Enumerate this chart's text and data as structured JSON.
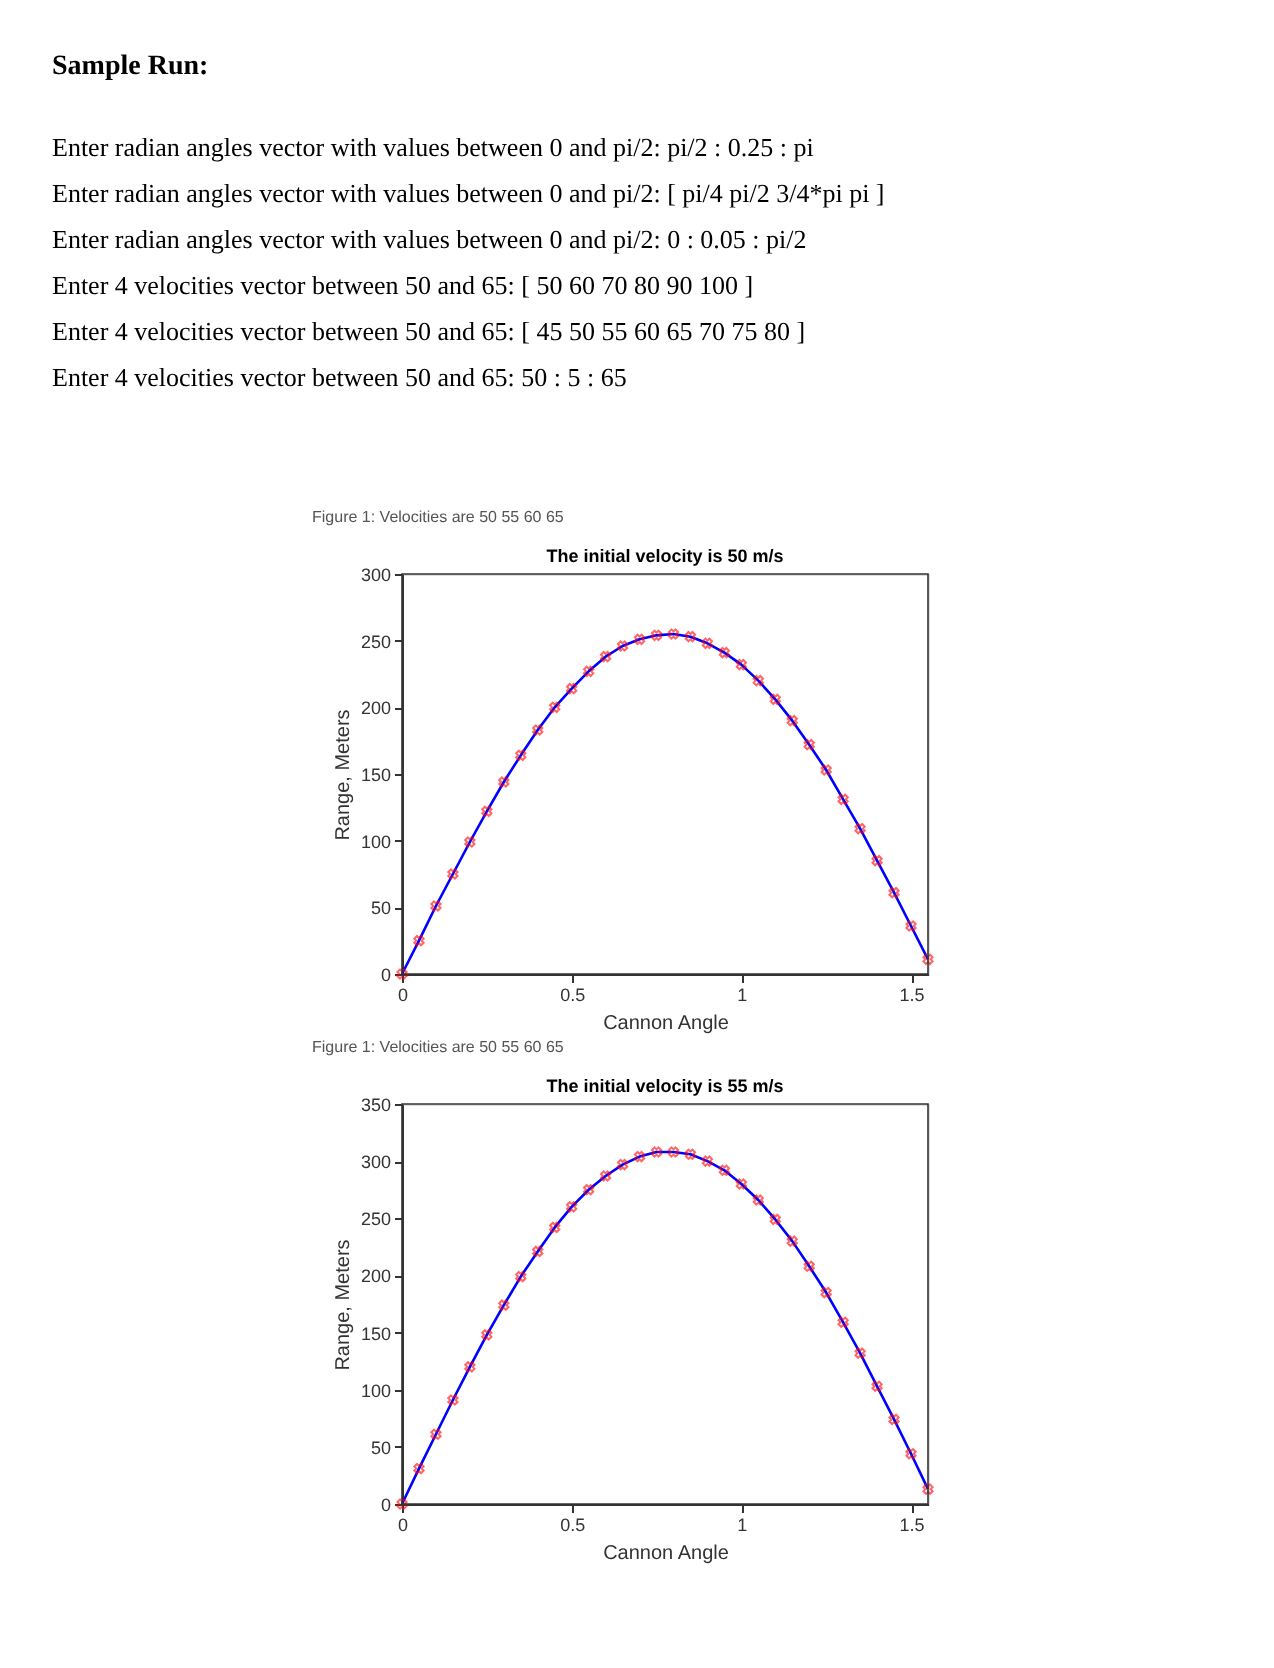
{
  "chart_data": [
    {
      "type": "line",
      "title": "The initial velocity is 50 m/s",
      "annotations": [
        "Sample Run:",
        "Enter radian angles vector with values between 0 and pi/2: pi/2 : 0.25 : pi",
        "Enter radian angles vector with values between 0 and pi/2: [ pi/4  pi/2  3/4*pi  pi  ]",
        "Enter radian angles vector with values between 0 and pi/2: 0 : 0.05 : pi/2",
        "Enter 4 velocities vector between 50 and 65: [ 50 60 70 80 90 100 ]",
        "Enter 4 velocities vector between 50 and 65: [ 45 50 55 60 65 70 75 80 ]",
        "Enter 4 velocities vector between 50 and 65: 50 : 5 : 65",
        "Figure 1: Velocities are 50 55 60 65"
      ],
      "xlabel": "Cannon Angle",
      "ylabel": "Range, Meters",
      "x": [
        0,
        0.05,
        0.1,
        0.15,
        0.2,
        0.25,
        0.3,
        0.35,
        0.4,
        0.45,
        0.5,
        0.55,
        0.6,
        0.65,
        0.7,
        0.75,
        0.8,
        0.85,
        0.9,
        0.95,
        1.0,
        1.05,
        1.1,
        1.15,
        1.2,
        1.25,
        1.3,
        1.35,
        1.4,
        1.45,
        1.5,
        1.55
      ],
      "series": [
        {
          "type": "line",
          "color": "#0000ff",
          "marker": "none",
          "values": [
            0,
            25,
            51,
            75,
            99,
            122,
            144,
            164,
            183,
            200,
            214,
            227,
            238,
            246,
            251,
            254,
            255,
            253,
            248,
            241,
            232,
            220,
            206,
            190,
            172,
            153,
            131,
            109,
            85,
            61,
            36,
            11
          ]
        },
        {
          "type": "scatter",
          "color": "#ff0000",
          "marker": "cross",
          "values": [
            0,
            25,
            51,
            75,
            99,
            122,
            144,
            164,
            183,
            200,
            214,
            227,
            238,
            246,
            251,
            254,
            255,
            253,
            248,
            241,
            232,
            220,
            206,
            190,
            172,
            153,
            131,
            109,
            85,
            61,
            36,
            11
          ]
        }
      ],
      "xlim": [
        0,
        1.55
      ],
      "xticks": [
        0,
        0.5,
        1,
        1.5
      ],
      "ylim": [
        0,
        300
      ],
      "yticks": [
        0,
        50,
        100,
        150,
        200,
        250,
        300
      ]
    },
    {
      "type": "line",
      "title": "The initial velocity is 55 m/s",
      "annotations": [
        "Figure 1: Velocities are 50 55 60 65"
      ],
      "xlabel": "Cannon Angle",
      "ylabel": "Range, Meters",
      "x": [
        0,
        0.05,
        0.1,
        0.15,
        0.2,
        0.25,
        0.3,
        0.35,
        0.4,
        0.45,
        0.5,
        0.55,
        0.6,
        0.65,
        0.7,
        0.75,
        0.8,
        0.85,
        0.9,
        0.95,
        1.0,
        1.05,
        1.1,
        1.15,
        1.2,
        1.25,
        1.3,
        1.35,
        1.4,
        1.45,
        1.5,
        1.55
      ],
      "series": [
        {
          "type": "line",
          "color": "#0000ff",
          "marker": "none",
          "values": [
            0,
            31,
            61,
            91,
            120,
            148,
            174,
            199,
            221,
            242,
            260,
            275,
            287,
            297,
            304,
            308,
            308,
            306,
            300,
            292,
            280,
            266,
            249,
            230,
            208,
            185,
            159,
            132,
            103,
            74,
            44,
            13
          ]
        },
        {
          "type": "scatter",
          "color": "#ff0000",
          "marker": "cross",
          "values": [
            0,
            31,
            61,
            91,
            120,
            148,
            174,
            199,
            221,
            242,
            260,
            275,
            287,
            297,
            304,
            308,
            308,
            306,
            300,
            292,
            280,
            266,
            249,
            230,
            208,
            185,
            159,
            132,
            103,
            74,
            44,
            13
          ]
        }
      ],
      "xlim": [
        0,
        1.55
      ],
      "xticks": [
        0,
        0.5,
        1,
        1.5
      ],
      "ylim": [
        0,
        350
      ],
      "yticks": [
        0,
        50,
        100,
        150,
        200,
        250,
        300,
        350
      ]
    }
  ]
}
